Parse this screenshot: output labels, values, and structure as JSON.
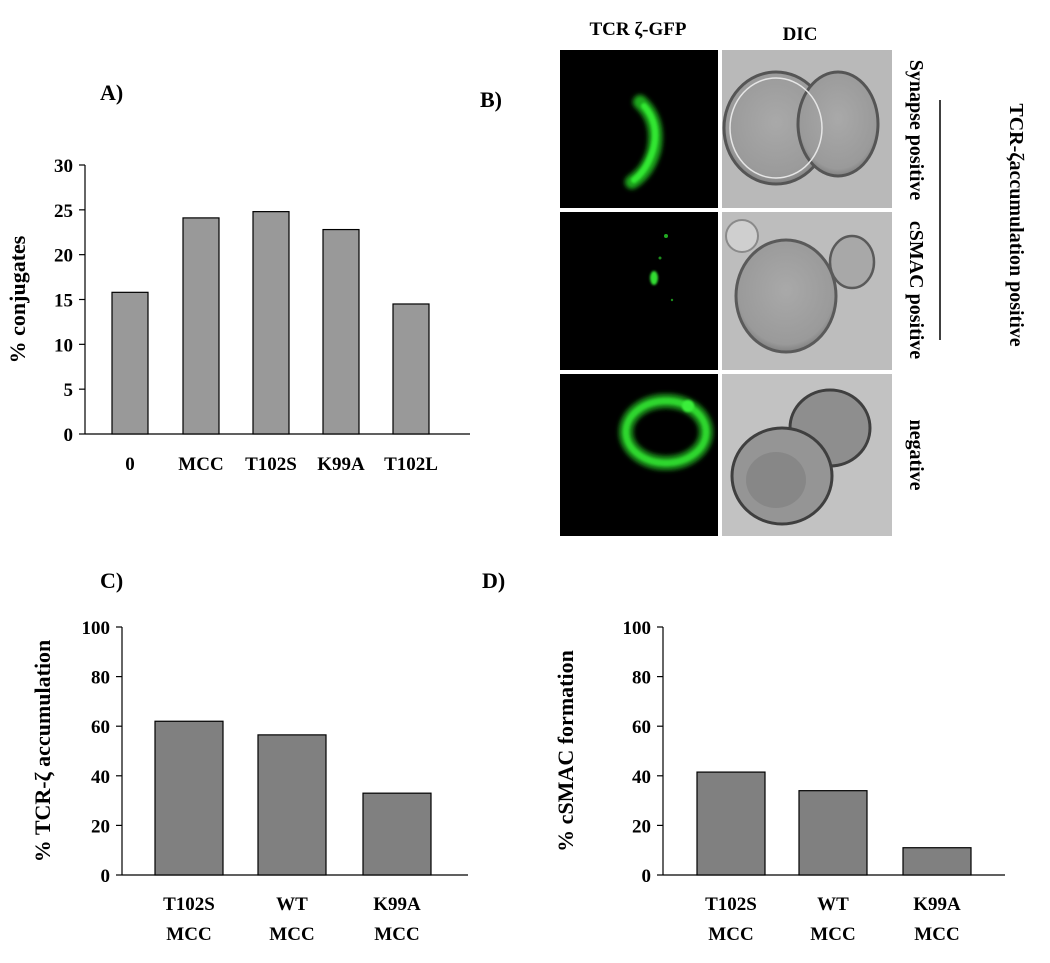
{
  "panel_labels": {
    "a": "A)",
    "b": "B)",
    "c": "C)",
    "d": "D)"
  },
  "micrographs": {
    "col_labels": [
      "TCR ζ-GFP",
      "DIC"
    ],
    "row_labels": [
      "Synapse positive",
      "cSMAC positive",
      "negative"
    ],
    "side_title": "TCR-ζaccumulation positive",
    "colors": {
      "gfp": "#22dd22",
      "background": "#000000",
      "dic": "#b8b8b8"
    }
  },
  "chart_data": [
    {
      "type": "bar",
      "panel": "A",
      "categories": [
        "0",
        "MCC",
        "T102S",
        "K99A",
        "T102L"
      ],
      "values": [
        15.8,
        24.1,
        24.8,
        22.8,
        14.5
      ],
      "ylabel": "% conjugates",
      "ylim": [
        0,
        30
      ],
      "yticks": [
        0,
        5,
        10,
        15,
        20,
        25,
        30
      ],
      "bar_color": "#999999",
      "grid": false
    },
    {
      "type": "bar",
      "panel": "C",
      "categories": [
        [
          "T102S",
          "MCC"
        ],
        [
          "WT",
          "MCC"
        ],
        [
          "K99A",
          "MCC"
        ]
      ],
      "values": [
        62,
        56.5,
        33
      ],
      "ylabel": "% TCR-ζ accumulation",
      "ylim": [
        0,
        100
      ],
      "yticks": [
        0,
        20,
        40,
        60,
        80,
        100
      ],
      "bar_color": "#808080",
      "grid": false
    },
    {
      "type": "bar",
      "panel": "D",
      "categories": [
        [
          "T102S",
          "MCC"
        ],
        [
          "WT",
          "MCC"
        ],
        [
          "K99A",
          "MCC"
        ]
      ],
      "values": [
        41.5,
        34,
        11
      ],
      "ylabel": "% cSMAC formation",
      "ylim": [
        0,
        100
      ],
      "yticks": [
        0,
        20,
        40,
        60,
        80,
        100
      ],
      "bar_color": "#808080",
      "grid": false
    }
  ]
}
